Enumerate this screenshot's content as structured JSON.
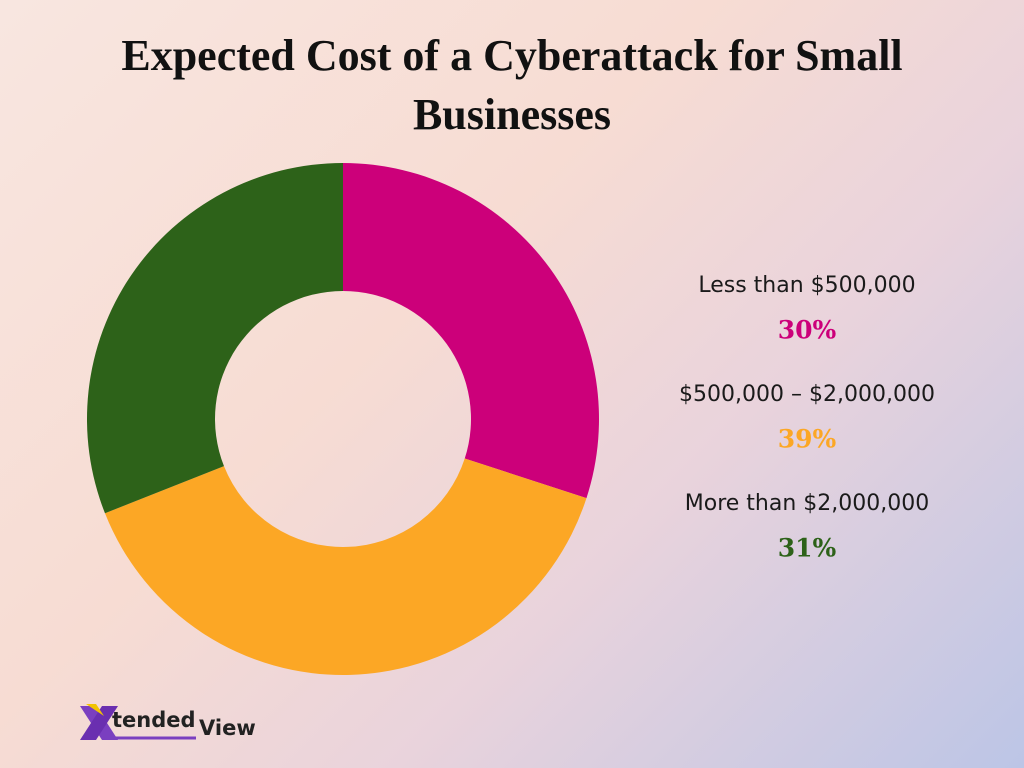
{
  "chart_data": {
    "type": "donut",
    "title": "Expected Cost of a Cyberattack for Small Businesses",
    "categories": [
      "Less than $500,000",
      "$500,000 – $2,000,000",
      "More than $2,000,000"
    ],
    "values": [
      30,
      39,
      31
    ],
    "value_labels": [
      "30%",
      "39%",
      "31%"
    ],
    "colors": [
      "#cc007a",
      "#fca725",
      "#2d6219"
    ]
  },
  "logo": {
    "text1": "tended",
    "text2": "View"
  }
}
